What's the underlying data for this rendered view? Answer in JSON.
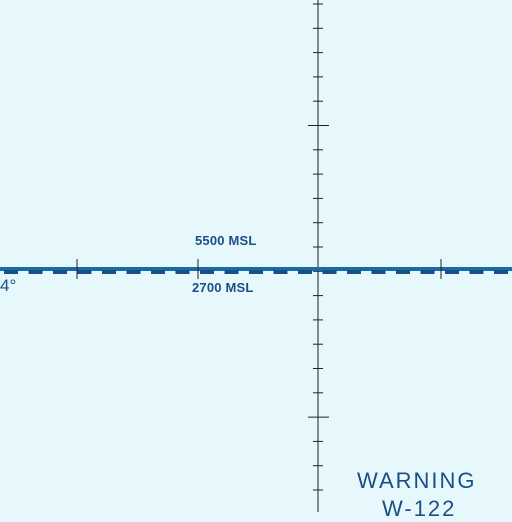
{
  "map": {
    "background_color": "#e6f8fb",
    "line_color": "#1a4f86",
    "graticule_color": "#222222",
    "labels": {
      "altitude_top": "5500 MSL",
      "altitude_bottom": "2700 MSL",
      "meridian_degree": "4°",
      "area_name": "WARNING",
      "area_id": "W-122"
    }
  }
}
